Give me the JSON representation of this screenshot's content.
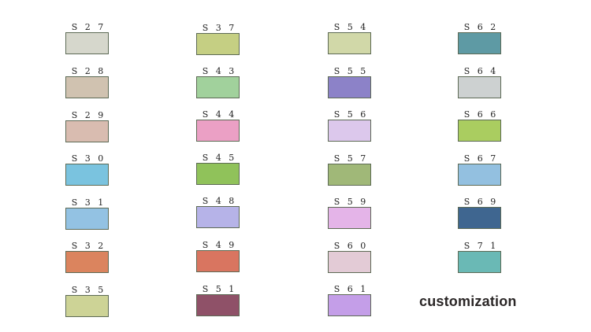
{
  "swatches": [
    {
      "label": "S27",
      "color": "#d6d7cc"
    },
    {
      "label": "S28",
      "color": "#d0c2b0"
    },
    {
      "label": "S29",
      "color": "#d9bcb0"
    },
    {
      "label": "S30",
      "color": "#7ac3df"
    },
    {
      "label": "S31",
      "color": "#93c2e3"
    },
    {
      "label": "S32",
      "color": "#db845e"
    },
    {
      "label": "S35",
      "color": "#cdd396"
    },
    {
      "label": "S37",
      "color": "#c5cf83"
    },
    {
      "label": "S43",
      "color": "#a1d19c"
    },
    {
      "label": "S44",
      "color": "#eba0c5"
    },
    {
      "label": "S45",
      "color": "#90c25a"
    },
    {
      "label": "S48",
      "color": "#b6b3e8"
    },
    {
      "label": "S49",
      "color": "#d97560"
    },
    {
      "label": "S51",
      "color": "#8f5168"
    },
    {
      "label": "S54",
      "color": "#d1d8a8"
    },
    {
      "label": "S55",
      "color": "#8c82c8"
    },
    {
      "label": "S56",
      "color": "#dcc8ec"
    },
    {
      "label": "S57",
      "color": "#a0b878"
    },
    {
      "label": "S59",
      "color": "#e4b4e8"
    },
    {
      "label": "S60",
      "color": "#e3cbd6"
    },
    {
      "label": "S61",
      "color": "#c49ee8"
    },
    {
      "label": "S62",
      "color": "#5e9aa4"
    },
    {
      "label": "S64",
      "color": "#cdd1d1"
    },
    {
      "label": "S66",
      "color": "#aacd60"
    },
    {
      "label": "S67",
      "color": "#93c0e0"
    },
    {
      "label": "S69",
      "color": "#3f6690"
    },
    {
      "label": "S71",
      "color": "#6ab9b5"
    }
  ],
  "brand": "customization"
}
